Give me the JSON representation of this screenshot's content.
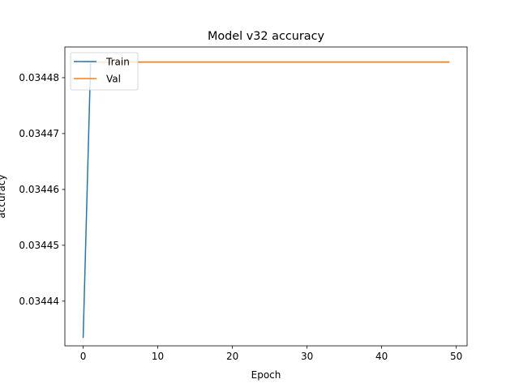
{
  "chart_data": {
    "type": "line",
    "title": "Model v32 accuracy",
    "xlabel": "Epoch",
    "ylabel": "accuracy",
    "xlim": [
      -2.45,
      51.45
    ],
    "ylim": [
      0.034432,
      0.0344855
    ],
    "xticks": [
      0,
      10,
      20,
      30,
      40,
      50
    ],
    "xtick_labels": [
      "0",
      "10",
      "20",
      "30",
      "40",
      "50"
    ],
    "yticks": [
      0.03444,
      0.03445,
      0.03446,
      0.03447,
      0.03448
    ],
    "ytick_labels": [
      "0.03444",
      "0.03445",
      "0.03446",
      "0.03447",
      "0.03448"
    ],
    "grid": false,
    "legend_position": "top-left",
    "series": [
      {
        "name": "Train",
        "color": "#1f77b4",
        "x": [
          0,
          1,
          2,
          3,
          4,
          5,
          6,
          7,
          8,
          9,
          10,
          11,
          12,
          13,
          14,
          15,
          16,
          17,
          18,
          19,
          20,
          21,
          22,
          23,
          24,
          25,
          26,
          27,
          28,
          29,
          30,
          31,
          32,
          33,
          34,
          35,
          36,
          37,
          38,
          39,
          40,
          41,
          42,
          43,
          44,
          45,
          46,
          47,
          48,
          49
        ],
        "values": [
          0.0344335,
          0.0344828,
          0.0344828,
          0.0344828,
          0.0344828,
          0.0344828,
          0.0344828,
          0.0344828,
          0.0344828,
          0.0344828,
          0.0344828,
          0.0344828,
          0.0344828,
          0.0344828,
          0.0344828,
          0.0344828,
          0.0344828,
          0.0344828,
          0.0344828,
          0.0344828,
          0.0344828,
          0.0344828,
          0.0344828,
          0.0344828,
          0.0344828,
          0.0344828,
          0.0344828,
          0.0344828,
          0.0344828,
          0.0344828,
          0.0344828,
          0.0344828,
          0.0344828,
          0.0344828,
          0.0344828,
          0.0344828,
          0.0344828,
          0.0344828,
          0.0344828,
          0.0344828,
          0.0344828,
          0.0344828,
          0.0344828,
          0.0344828,
          0.0344828,
          0.0344828,
          0.0344828,
          0.0344828,
          0.0344828,
          0.0344828
        ]
      },
      {
        "name": "Val",
        "color": "#ff7f0e",
        "x": [
          0,
          1,
          2,
          3,
          4,
          5,
          6,
          7,
          8,
          9,
          10,
          11,
          12,
          13,
          14,
          15,
          16,
          17,
          18,
          19,
          20,
          21,
          22,
          23,
          24,
          25,
          26,
          27,
          28,
          29,
          30,
          31,
          32,
          33,
          34,
          35,
          36,
          37,
          38,
          39,
          40,
          41,
          42,
          43,
          44,
          45,
          46,
          47,
          48,
          49
        ],
        "values": [
          0.0344828,
          0.0344828,
          0.0344828,
          0.0344828,
          0.0344828,
          0.0344828,
          0.0344828,
          0.0344828,
          0.0344828,
          0.0344828,
          0.0344828,
          0.0344828,
          0.0344828,
          0.0344828,
          0.0344828,
          0.0344828,
          0.0344828,
          0.0344828,
          0.0344828,
          0.0344828,
          0.0344828,
          0.0344828,
          0.0344828,
          0.0344828,
          0.0344828,
          0.0344828,
          0.0344828,
          0.0344828,
          0.0344828,
          0.0344828,
          0.0344828,
          0.0344828,
          0.0344828,
          0.0344828,
          0.0344828,
          0.0344828,
          0.0344828,
          0.0344828,
          0.0344828,
          0.0344828,
          0.0344828,
          0.0344828,
          0.0344828,
          0.0344828,
          0.0344828,
          0.0344828,
          0.0344828,
          0.0344828,
          0.0344828,
          0.0344828
        ]
      }
    ]
  }
}
